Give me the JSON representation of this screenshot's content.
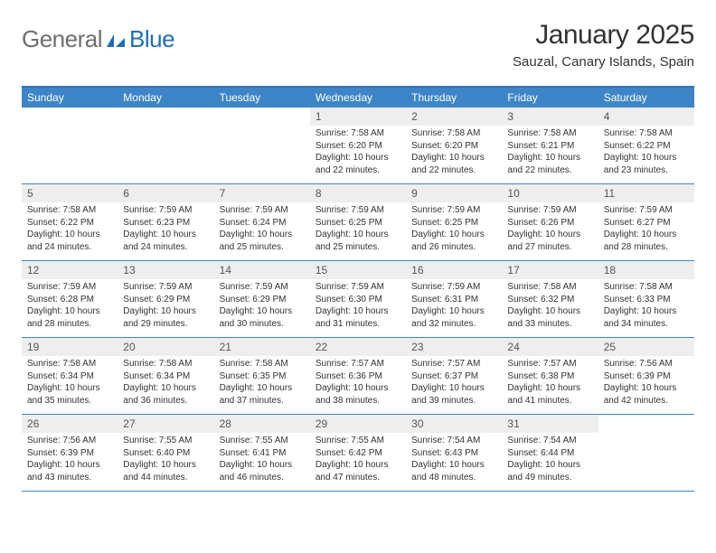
{
  "logo": {
    "general": "General",
    "blue": "Blue"
  },
  "title": "January 2025",
  "location": "Sauzal, Canary Islands, Spain",
  "colors": {
    "header_bar": "#3d85c6",
    "border": "#2f75b8",
    "daynum_bg": "#eeeeee",
    "text": "#333333",
    "logo_grey": "#6e6e6e",
    "logo_blue": "#1f6fb2"
  },
  "day_names": [
    "Sunday",
    "Monday",
    "Tuesday",
    "Wednesday",
    "Thursday",
    "Friday",
    "Saturday"
  ],
  "weeks": [
    [
      null,
      null,
      null,
      {
        "n": "1",
        "sr": "7:58 AM",
        "ss": "6:20 PM",
        "dl": "10 hours and 22 minutes."
      },
      {
        "n": "2",
        "sr": "7:58 AM",
        "ss": "6:20 PM",
        "dl": "10 hours and 22 minutes."
      },
      {
        "n": "3",
        "sr": "7:58 AM",
        "ss": "6:21 PM",
        "dl": "10 hours and 22 minutes."
      },
      {
        "n": "4",
        "sr": "7:58 AM",
        "ss": "6:22 PM",
        "dl": "10 hours and 23 minutes."
      }
    ],
    [
      {
        "n": "5",
        "sr": "7:58 AM",
        "ss": "6:22 PM",
        "dl": "10 hours and 24 minutes."
      },
      {
        "n": "6",
        "sr": "7:59 AM",
        "ss": "6:23 PM",
        "dl": "10 hours and 24 minutes."
      },
      {
        "n": "7",
        "sr": "7:59 AM",
        "ss": "6:24 PM",
        "dl": "10 hours and 25 minutes."
      },
      {
        "n": "8",
        "sr": "7:59 AM",
        "ss": "6:25 PM",
        "dl": "10 hours and 25 minutes."
      },
      {
        "n": "9",
        "sr": "7:59 AM",
        "ss": "6:25 PM",
        "dl": "10 hours and 26 minutes."
      },
      {
        "n": "10",
        "sr": "7:59 AM",
        "ss": "6:26 PM",
        "dl": "10 hours and 27 minutes."
      },
      {
        "n": "11",
        "sr": "7:59 AM",
        "ss": "6:27 PM",
        "dl": "10 hours and 28 minutes."
      }
    ],
    [
      {
        "n": "12",
        "sr": "7:59 AM",
        "ss": "6:28 PM",
        "dl": "10 hours and 28 minutes."
      },
      {
        "n": "13",
        "sr": "7:59 AM",
        "ss": "6:29 PM",
        "dl": "10 hours and 29 minutes."
      },
      {
        "n": "14",
        "sr": "7:59 AM",
        "ss": "6:29 PM",
        "dl": "10 hours and 30 minutes."
      },
      {
        "n": "15",
        "sr": "7:59 AM",
        "ss": "6:30 PM",
        "dl": "10 hours and 31 minutes."
      },
      {
        "n": "16",
        "sr": "7:59 AM",
        "ss": "6:31 PM",
        "dl": "10 hours and 32 minutes."
      },
      {
        "n": "17",
        "sr": "7:58 AM",
        "ss": "6:32 PM",
        "dl": "10 hours and 33 minutes."
      },
      {
        "n": "18",
        "sr": "7:58 AM",
        "ss": "6:33 PM",
        "dl": "10 hours and 34 minutes."
      }
    ],
    [
      {
        "n": "19",
        "sr": "7:58 AM",
        "ss": "6:34 PM",
        "dl": "10 hours and 35 minutes."
      },
      {
        "n": "20",
        "sr": "7:58 AM",
        "ss": "6:34 PM",
        "dl": "10 hours and 36 minutes."
      },
      {
        "n": "21",
        "sr": "7:58 AM",
        "ss": "6:35 PM",
        "dl": "10 hours and 37 minutes."
      },
      {
        "n": "22",
        "sr": "7:57 AM",
        "ss": "6:36 PM",
        "dl": "10 hours and 38 minutes."
      },
      {
        "n": "23",
        "sr": "7:57 AM",
        "ss": "6:37 PM",
        "dl": "10 hours and 39 minutes."
      },
      {
        "n": "24",
        "sr": "7:57 AM",
        "ss": "6:38 PM",
        "dl": "10 hours and 41 minutes."
      },
      {
        "n": "25",
        "sr": "7:56 AM",
        "ss": "6:39 PM",
        "dl": "10 hours and 42 minutes."
      }
    ],
    [
      {
        "n": "26",
        "sr": "7:56 AM",
        "ss": "6:39 PM",
        "dl": "10 hours and 43 minutes."
      },
      {
        "n": "27",
        "sr": "7:55 AM",
        "ss": "6:40 PM",
        "dl": "10 hours and 44 minutes."
      },
      {
        "n": "28",
        "sr": "7:55 AM",
        "ss": "6:41 PM",
        "dl": "10 hours and 46 minutes."
      },
      {
        "n": "29",
        "sr": "7:55 AM",
        "ss": "6:42 PM",
        "dl": "10 hours and 47 minutes."
      },
      {
        "n": "30",
        "sr": "7:54 AM",
        "ss": "6:43 PM",
        "dl": "10 hours and 48 minutes."
      },
      {
        "n": "31",
        "sr": "7:54 AM",
        "ss": "6:44 PM",
        "dl": "10 hours and 49 minutes."
      },
      null
    ]
  ],
  "labels": {
    "sunrise": "Sunrise:",
    "sunset": "Sunset:",
    "daylight": "Daylight:"
  }
}
